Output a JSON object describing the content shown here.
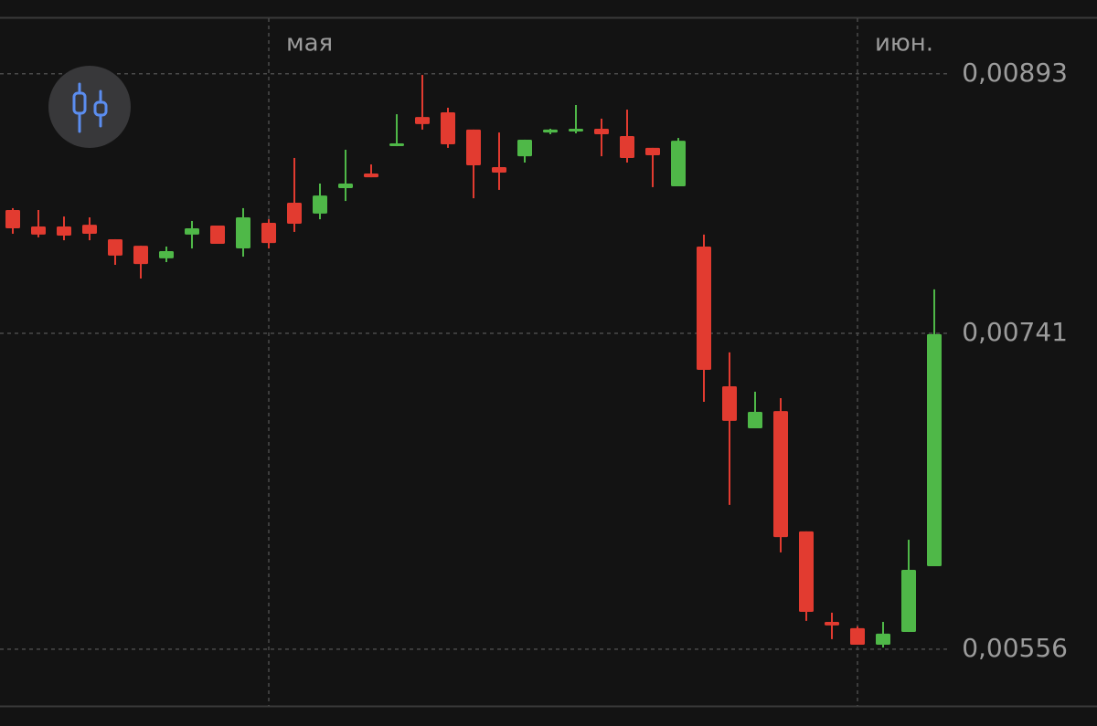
{
  "chart_data": {
    "type": "candlestick",
    "categories": [
      null,
      null,
      null,
      null,
      null,
      null,
      null,
      null,
      null,
      null,
      "мая",
      null,
      null,
      null,
      null,
      null,
      null,
      null,
      null,
      null,
      null,
      null,
      null,
      null,
      null,
      null,
      null,
      null,
      null,
      null,
      null,
      null,
      null,
      "июн.",
      null,
      null,
      null
    ],
    "open": [
      0.008132,
      0.008036,
      0.008036,
      0.008046,
      0.007961,
      0.007923,
      0.007849,
      0.007988,
      0.008041,
      0.007907,
      0.008057,
      0.008175,
      0.008111,
      0.00826,
      0.008346,
      0.008506,
      0.008677,
      0.008704,
      0.008603,
      0.008383,
      0.008447,
      0.008586,
      0.008597,
      0.008608,
      0.008565,
      0.008496,
      0.008271,
      0.007918,
      0.0071,
      0.006854,
      0.006955,
      0.00625,
      0.00572,
      0.005683,
      0.005586,
      0.005661,
      0.006046
    ],
    "high": [
      0.008143,
      0.008132,
      0.008094,
      0.008089,
      0.007961,
      0.007923,
      0.007918,
      0.008068,
      0.008041,
      0.008143,
      0.008078,
      0.008437,
      0.008287,
      0.008485,
      0.008399,
      0.008693,
      0.008923,
      0.008731,
      0.008603,
      0.008586,
      0.008544,
      0.008608,
      0.008747,
      0.008667,
      0.00872,
      0.008496,
      0.008554,
      0.007988,
      0.007298,
      0.007068,
      0.00703,
      0.00625,
      0.005774,
      0.005693,
      0.00572,
      0.006201,
      0.007667
    ],
    "low": [
      0.007993,
      0.007972,
      0.007955,
      0.007955,
      0.007811,
      0.007731,
      0.007827,
      0.007907,
      0.007934,
      0.007859,
      0.007907,
      0.008004,
      0.008078,
      0.008185,
      0.008324,
      0.008506,
      0.008603,
      0.008496,
      0.008201,
      0.00825,
      0.00841,
      0.008576,
      0.008581,
      0.008447,
      0.00841,
      0.008266,
      0.008271,
      0.007009,
      0.006405,
      0.006854,
      0.006127,
      0.005726,
      0.005619,
      0.005586,
      0.00557,
      0.005661,
      0.006046
    ],
    "close": [
      0.008025,
      0.007988,
      0.007982,
      0.007993,
      0.007865,
      0.007816,
      0.007891,
      0.008025,
      0.007934,
      0.008089,
      0.007939,
      0.008052,
      0.008217,
      0.008287,
      0.008324,
      0.008522,
      0.008635,
      0.008517,
      0.008394,
      0.008351,
      0.008544,
      0.008603,
      0.008608,
      0.008576,
      0.008437,
      0.008453,
      0.008538,
      0.007196,
      0.006897,
      0.00695,
      0.006217,
      0.005779,
      0.005699,
      0.005586,
      0.005651,
      0.006025,
      0.007405
    ],
    "up_color": "#4fb848",
    "down_color": "#e23b30",
    "ylim": [
      0.005228,
      0.009255
    ],
    "yticks": [
      {
        "value": 0.00556,
        "label": "0,00556"
      },
      {
        "value": 0.00741,
        "label": "0,00741"
      },
      {
        "value": 0.00893,
        "label": "0,00893"
      }
    ],
    "grid": true
  }
}
